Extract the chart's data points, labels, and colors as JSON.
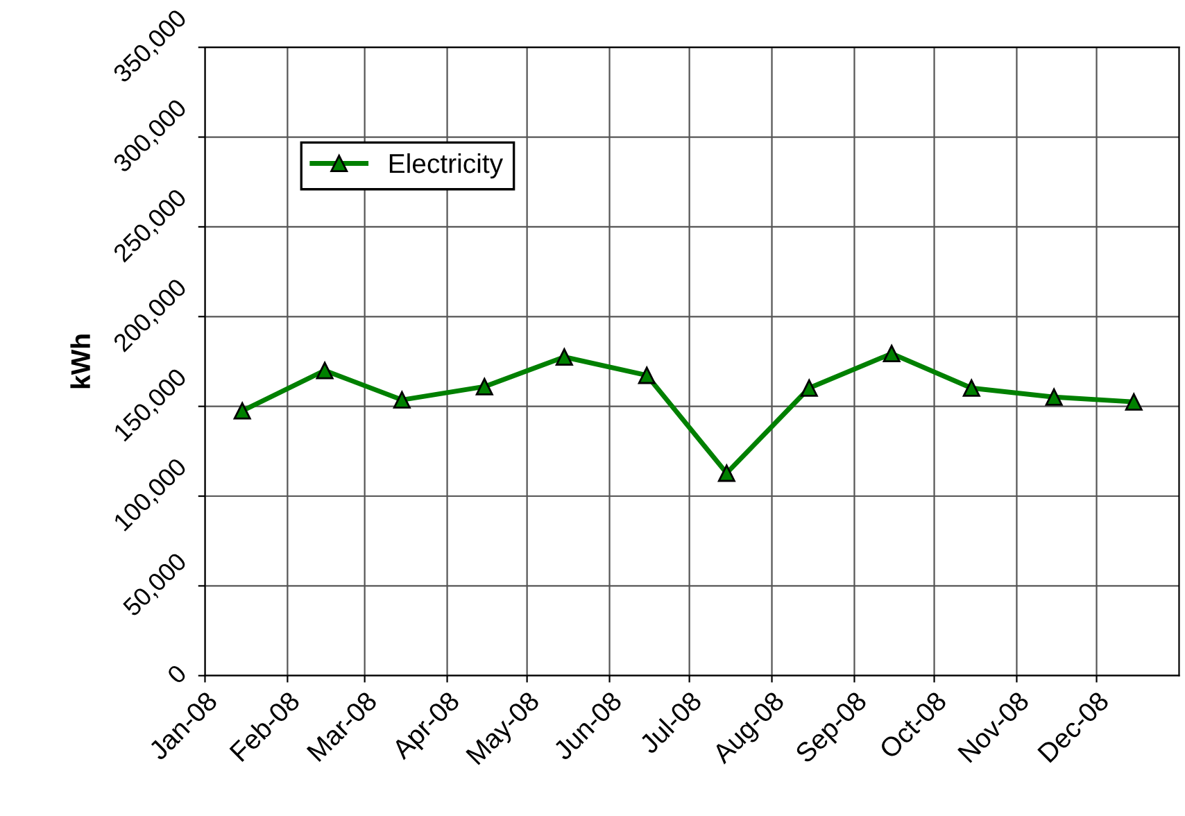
{
  "chart_data": {
    "type": "line",
    "ylabel": "kWh",
    "x": [
      "2008-01-15",
      "2008-02-15",
      "2008-03-15",
      "2008-04-15",
      "2008-05-15",
      "2008-06-15",
      "2008-07-15",
      "2008-08-15",
      "2008-09-15",
      "2008-10-15",
      "2008-11-15",
      "2008-12-15"
    ],
    "series": [
      {
        "name": "Electricity",
        "color": "#008000",
        "values": [
          147500,
          170000,
          153600,
          161000,
          177500,
          167300,
          112800,
          160200,
          179400,
          160200,
          155200,
          152500
        ]
      }
    ],
    "xlim": [
      "2008-01-01",
      "2009-01-01"
    ],
    "xticks": [
      {
        "value": "2008-01-01",
        "label": "Jan-08"
      },
      {
        "value": "2008-02-01",
        "label": "Feb-08"
      },
      {
        "value": "2008-03-01",
        "label": "Mar-08"
      },
      {
        "value": "2008-04-01",
        "label": "Apr-08"
      },
      {
        "value": "2008-05-01",
        "label": "May-08"
      },
      {
        "value": "2008-06-01",
        "label": "Jun-08"
      },
      {
        "value": "2008-07-01",
        "label": "Jul-08"
      },
      {
        "value": "2008-08-01",
        "label": "Aug-08"
      },
      {
        "value": "2008-09-01",
        "label": "Sep-08"
      },
      {
        "value": "2008-10-01",
        "label": "Oct-08"
      },
      {
        "value": "2008-11-01",
        "label": "Nov-08"
      },
      {
        "value": "2008-12-01",
        "label": "Dec-08"
      }
    ],
    "ylim": [
      0,
      350000
    ],
    "yticks": [
      0,
      {
        "value": 50000,
        "label": "50,000"
      },
      {
        "value": 100000,
        "label": "100,000"
      },
      {
        "value": 150000,
        "label": "150,000"
      },
      {
        "value": 200000,
        "label": "200,000"
      },
      {
        "value": 250000,
        "label": "250,000"
      },
      {
        "value": 300000,
        "label": "300,000"
      },
      {
        "value": 350000,
        "label": "350,000"
      }
    ],
    "grid": true,
    "legend": "top left",
    "marker": "triangle",
    "line_style": "solid"
  }
}
